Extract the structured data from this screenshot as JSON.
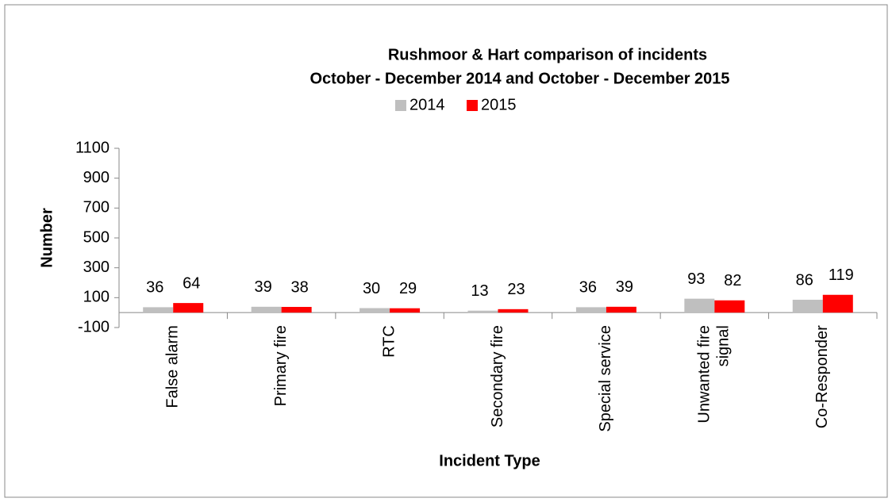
{
  "chart_data": {
    "type": "bar",
    "title": "Rushmoor & Hart comparison of incidents",
    "subtitle": "October - December 2014 and October - December 2015",
    "categories": [
      "False alarm",
      "Primary fire",
      "RTC",
      "Secondary fire",
      "Special service",
      "Unwanted fire signal",
      "Co-Responder"
    ],
    "series": [
      {
        "name": "2014",
        "color": "#bfbfbf",
        "values": [
          36,
          39,
          30,
          13,
          36,
          93,
          86
        ]
      },
      {
        "name": "2015",
        "color": "#ff0000",
        "values": [
          64,
          38,
          29,
          23,
          39,
          82,
          119
        ]
      }
    ],
    "ylim": [
      -100,
      1100
    ],
    "yticks": [
      -100,
      100,
      300,
      500,
      700,
      900,
      1100
    ],
    "y_label": "Number",
    "x_label": "Incident Type",
    "grid": false,
    "legend": "top"
  }
}
